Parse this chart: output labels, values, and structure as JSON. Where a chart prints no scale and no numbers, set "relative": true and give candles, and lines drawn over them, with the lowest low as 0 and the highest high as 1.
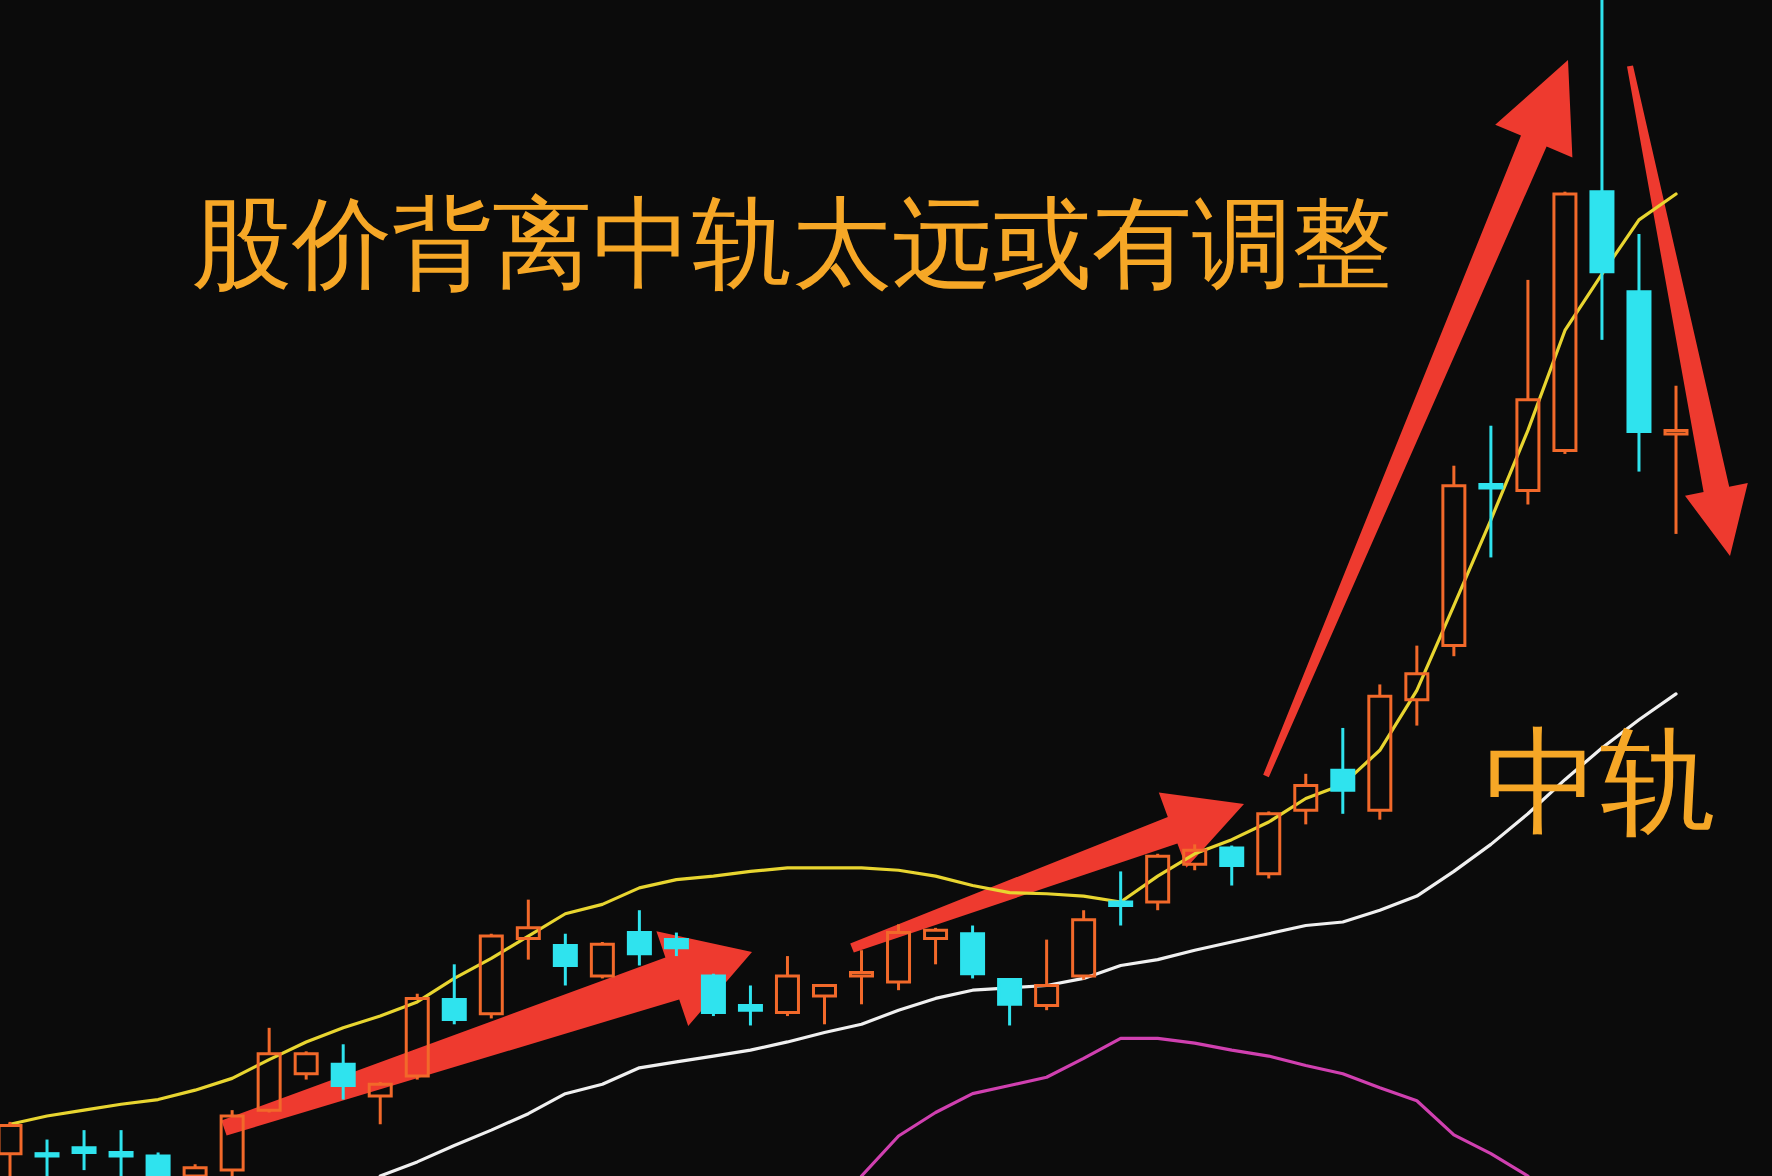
{
  "chart_data": {
    "type": "candlestick",
    "relative": true,
    "categories": [
      null,
      null,
      null,
      null,
      null,
      null,
      null,
      null,
      null,
      null,
      null,
      null,
      null,
      null,
      null,
      null,
      null,
      null,
      null,
      null,
      null,
      null,
      null,
      null,
      null,
      null,
      null,
      null,
      null,
      null,
      null,
      null,
      null,
      null,
      null,
      null,
      null,
      null,
      null,
      null,
      null,
      null,
      null,
      null,
      null,
      null
    ],
    "ohlc": [
      [
        0.019,
        0.046,
        0,
        0.043
      ],
      [
        0.019,
        0.031,
        0,
        0.017
      ],
      [
        0.024,
        0.039,
        0.005,
        0.02
      ],
      [
        0.02,
        0.039,
        0,
        0.017
      ],
      [
        0.017,
        0.02,
        0,
        0
      ],
      [
        0,
        0.01,
        0,
        0.007
      ],
      [
        0.005,
        0.056,
        0,
        0.051
      ],
      [
        0.056,
        0.126,
        0.054,
        0.104
      ],
      [
        0.087,
        0.106,
        0.082,
        0.104
      ],
      [
        0.095,
        0.112,
        0.065,
        0.077
      ],
      [
        0.068,
        0.08,
        0.044,
        0.078
      ],
      [
        0.085,
        0.155,
        0.082,
        0.151
      ],
      [
        0.15,
        0.18,
        0.129,
        0.133
      ],
      [
        0.138,
        0.206,
        0.134,
        0.204
      ],
      [
        0.202,
        0.235,
        0.184,
        0.211
      ],
      [
        0.196,
        0.206,
        0.162,
        0.179
      ],
      [
        0.17,
        0.199,
        0.168,
        0.197
      ],
      [
        0.207,
        0.226,
        0.179,
        0.189
      ],
      [
        0.201,
        0.207,
        0.187,
        0.194
      ],
      [
        0.17,
        0.172,
        0.136,
        0.139
      ],
      [
        0.145,
        0.162,
        0.128,
        0.141
      ],
      [
        0.139,
        0.187,
        0.136,
        0.17
      ],
      [
        0.153,
        0.163,
        0.129,
        0.162
      ],
      [
        0.17,
        0.192,
        0.146,
        0.173
      ],
      [
        0.165,
        0.214,
        0.158,
        0.207
      ],
      [
        0.202,
        0.211,
        0.18,
        0.209
      ],
      [
        0.206,
        0.213,
        0.168,
        0.172
      ],
      [
        0.167,
        0.168,
        0.128,
        0.146
      ],
      [
        0.145,
        0.201,
        0.141,
        0.162
      ],
      [
        0.17,
        0.226,
        0.167,
        0.218
      ],
      [
        0.233,
        0.259,
        0.213,
        0.23
      ],
      [
        0.233,
        0.274,
        0.226,
        0.272
      ],
      [
        0.265,
        0.282,
        0.26,
        0.277
      ],
      [
        0.279,
        0.281,
        0.247,
        0.264
      ],
      [
        0.257,
        0.31,
        0.253,
        0.308
      ],
      [
        0.311,
        0.342,
        0.299,
        0.332
      ],
      [
        0.345,
        0.381,
        0.308,
        0.328
      ],
      [
        0.311,
        0.418,
        0.303,
        0.408
      ],
      [
        0.405,
        0.451,
        0.383,
        0.427
      ],
      [
        0.451,
        0.604,
        0.442,
        0.587
      ],
      [
        0.588,
        0.638,
        0.526,
        0.585
      ],
      [
        0.583,
        0.762,
        0.571,
        0.66
      ],
      [
        0.617,
        0.837,
        0.614,
        0.835
      ],
      [
        0.837,
        1,
        0.711,
        0.769
      ],
      [
        0.752,
        0.801,
        0.599,
        0.633
      ],
      [
        0.631,
        0.672,
        0.546,
        0.634
      ]
    ],
    "colors": [
      "#f2692a",
      "#2fe3ee",
      "#2fe3ee",
      "#2fe3ee",
      "#2fe3ee",
      "#f2692a",
      "#f2692a",
      "#f2692a",
      "#f2692a",
      "#2fe3ee",
      "#f2692a",
      "#f2692a",
      "#2fe3ee",
      "#f2692a",
      "#f2692a",
      "#2fe3ee",
      "#f2692a",
      "#2fe3ee",
      "#2fe3ee",
      "#2fe3ee",
      "#2fe3ee",
      "#f2692a",
      "#f2692a",
      "#f2692a",
      "#f2692a",
      "#f2692a",
      "#2fe3ee",
      "#2fe3ee",
      "#f2692a",
      "#f2692a",
      "#2fe3ee",
      "#f2692a",
      "#f2692a",
      "#2fe3ee",
      "#f2692a",
      "#f2692a",
      "#2fe3ee",
      "#f2692a",
      "#f2692a",
      "#f2692a",
      "#2fe3ee",
      "#f2692a",
      "#f2692a",
      "#2fe3ee",
      "#2fe3ee",
      "#f2692a"
    ],
    "series": [
      {
        "type": "line",
        "color": "#e8d530",
        "values": [
          0.044,
          0.051,
          0.056,
          0.061,
          0.065,
          0.073,
          0.083,
          0.099,
          0.114,
          0.126,
          0.136,
          0.148,
          0.168,
          0.185,
          0.204,
          0.223,
          0.231,
          0.245,
          0.252,
          0.255,
          0.259,
          0.262,
          0.262,
          0.262,
          0.26,
          0.255,
          0.247,
          0.241,
          0.24,
          0.238,
          0.233,
          0.255,
          0.274,
          0.286,
          0.301,
          0.321,
          0.333,
          0.362,
          0.413,
          0.485,
          0.558,
          0.634,
          0.719,
          0.767,
          0.813,
          0.835
        ]
      },
      {
        "type": "line",
        "color": "#f0f0f0",
        "values": [
          null,
          null,
          null,
          null,
          null,
          null,
          null,
          null,
          null,
          null,
          0,
          0.012,
          0.026,
          0.039,
          0.053,
          0.07,
          0.078,
          0.092,
          0.097,
          0.102,
          0.107,
          0.114,
          0.122,
          0.129,
          0.141,
          0.151,
          0.158,
          0.16,
          0.162,
          0.168,
          0.179,
          0.184,
          0.192,
          0.199,
          0.206,
          0.213,
          0.216,
          0.226,
          0.238,
          0.259,
          0.282,
          0.308,
          0.337,
          0.364,
          0.388,
          0.41
        ]
      },
      {
        "type": "line",
        "color": "#d040b0",
        "values": [
          null,
          null,
          null,
          null,
          null,
          null,
          null,
          null,
          null,
          null,
          null,
          null,
          null,
          null,
          null,
          null,
          null,
          null,
          null,
          null,
          null,
          null,
          null,
          0,
          0.034,
          0.054,
          0.07,
          0.077,
          0.084,
          0.1,
          0.117,
          0.117,
          0.113,
          0.107,
          0.102,
          0.094,
          0.087,
          0.075,
          0.064,
          0.035,
          0.019,
          0,
          null,
          null,
          null,
          null
        ]
      }
    ],
    "annotations": [
      "股价背离中轨太远或有调整",
      "中轨"
    ]
  }
}
